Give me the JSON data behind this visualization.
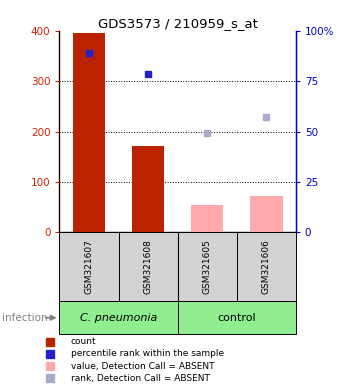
{
  "title": "GDS3573 / 210959_s_at",
  "samples": [
    "GSM321607",
    "GSM321608",
    "GSM321605",
    "GSM321606"
  ],
  "count_values": [
    396,
    172,
    55,
    72
  ],
  "count_detected": [
    true,
    true,
    false,
    false
  ],
  "percentile_values": [
    355,
    315,
    198,
    228
  ],
  "percentile_detected": [
    true,
    true,
    false,
    false
  ],
  "ylim_left": [
    0,
    400
  ],
  "ylim_right": [
    0,
    100
  ],
  "yticks_left": [
    0,
    100,
    200,
    300,
    400
  ],
  "yticks_right": [
    0,
    25,
    50,
    75,
    100
  ],
  "ytick_labels_left": [
    "0",
    "100",
    "200",
    "300",
    "400"
  ],
  "ytick_labels_right": [
    "0",
    "25",
    "50",
    "75",
    "100%"
  ],
  "dotted_lines": [
    100,
    200,
    300
  ],
  "group_label": "infection",
  "legend_labels": [
    "count",
    "percentile rank within the sample",
    "value, Detection Call = ABSENT",
    "rank, Detection Call = ABSENT"
  ],
  "legend_colors": [
    "#bb2200",
    "#2222cc",
    "#ffaaaa",
    "#aaaacc"
  ],
  "bar_width": 0.55,
  "left_axis_color": "#cc2200",
  "right_axis_color": "#0000cc",
  "bar_color_present": "#bb2200",
  "bar_color_absent": "#ffaaaa",
  "dot_color_present": "#2222cc",
  "dot_color_absent": "#aaaacc",
  "group_bg_color": "#90ee90",
  "sample_bg_color": "#d3d3d3"
}
